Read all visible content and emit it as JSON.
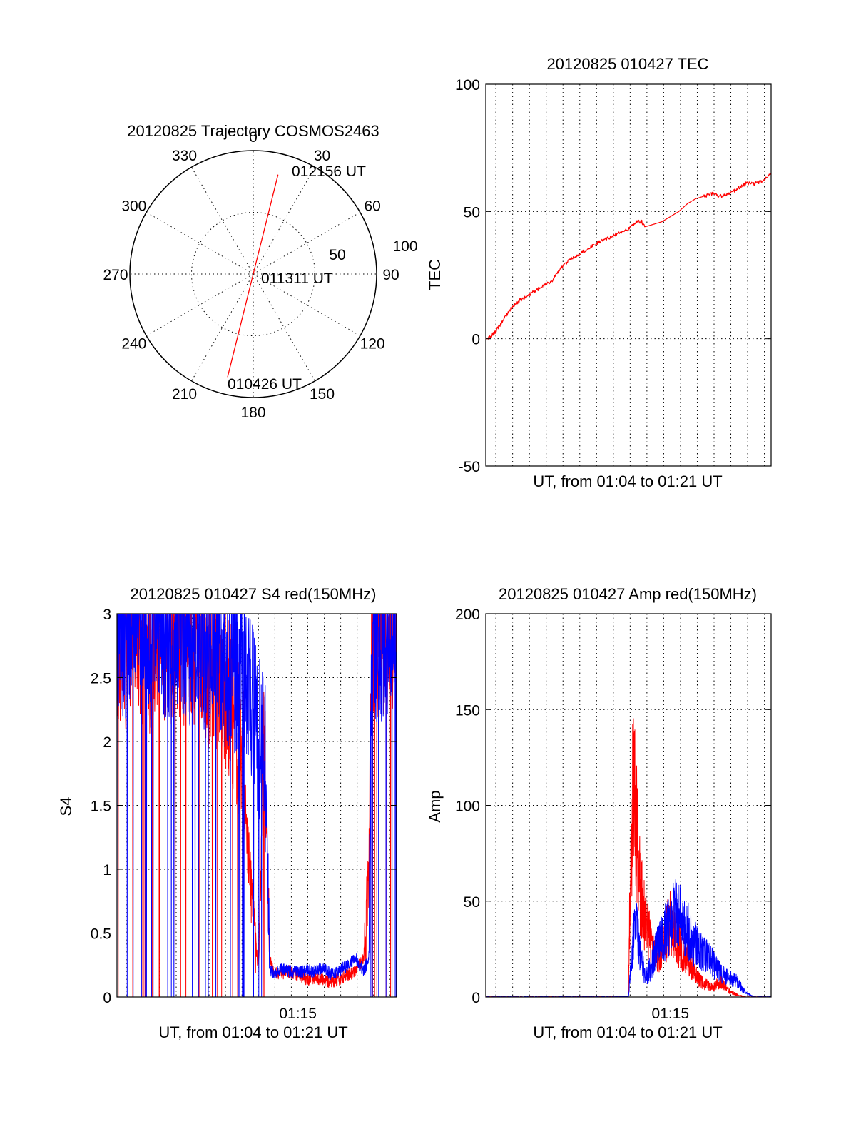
{
  "chart_data": [
    {
      "id": "polar",
      "type": "polar-trajectory",
      "title": "20120825 Trajectory COSMOS2463",
      "azimuth_labels": [
        "0",
        "30",
        "60",
        "90",
        "120",
        "150",
        "180",
        "210",
        "240",
        "270",
        "300",
        "330"
      ],
      "radial_labels": [
        "50",
        "100"
      ],
      "radial_values": [
        50,
        100
      ],
      "r_max": 100,
      "grid": true,
      "trajectory": {
        "color": "#ff0000",
        "points": [
          {
            "az": 194,
            "r": 86
          },
          {
            "az": 0,
            "r": 0
          },
          {
            "az": 14,
            "r": 83
          }
        ]
      },
      "annotations": [
        "012156 UT",
        "011311 UT",
        "010426 UT"
      ]
    },
    {
      "id": "tec",
      "type": "line",
      "title": "20120825 010427 TEC",
      "xlabel": "UT, from 01:04 to 01:21 UT",
      "ylabel": "TEC",
      "xlim": [
        0,
        17
      ],
      "ylim": [
        -50,
        100
      ],
      "yticks": [
        "-50",
        "0",
        "50",
        "100"
      ],
      "xgrid_step_min": 1,
      "grid": true,
      "series": [
        {
          "color": "#ff0000",
          "x": [
            0,
            0.3,
            0.6,
            1.0,
            1.5,
            2.0,
            2.5,
            3.0,
            3.5,
            4.0,
            4.5,
            5.0,
            5.5,
            6.0,
            6.5,
            7.0,
            7.5,
            8.0,
            8.5,
            9.0,
            9.3,
            9.5,
            10.0,
            10.5,
            11.0,
            11.5,
            12.0,
            12.5,
            13.0,
            13.5,
            14.0,
            14.5,
            15.0,
            15.5,
            16.0,
            16.5,
            17.0
          ],
          "y": [
            0,
            1,
            3,
            7,
            12,
            15,
            17,
            19,
            21,
            23,
            28,
            31,
            33,
            35,
            37,
            39,
            40,
            42,
            43,
            46,
            46,
            44,
            45,
            46,
            48,
            50,
            53,
            55,
            56,
            57,
            56,
            57,
            59,
            61,
            61,
            62,
            65
          ]
        }
      ]
    },
    {
      "id": "s4",
      "type": "line",
      "title": "20120825 010427 S4 red(150MHz)",
      "xlabel": "UT, from 01:04 to 01:21 UT",
      "ylabel": "S4",
      "xlim": [
        0,
        17
      ],
      "ylim": [
        0,
        3
      ],
      "yticks": [
        "0",
        "0.5",
        "1",
        "1.5",
        "2",
        "2.5",
        "3"
      ],
      "xticks": [
        {
          "x": 11,
          "label": "01:15"
        }
      ],
      "grid": true,
      "series": [
        {
          "color": "#ff0000",
          "x": [
            0,
            0.5,
            1.0,
            1.5,
            2.0,
            2.5,
            3.0,
            3.5,
            4.0,
            4.5,
            5.0,
            5.5,
            6.0,
            6.5,
            7.0,
            7.5,
            7.8,
            8.0,
            8.3,
            8.6,
            8.9,
            9.1,
            9.3,
            9.5,
            10.0,
            10.5,
            11.0,
            11.5,
            12.0,
            12.5,
            13.0,
            13.5,
            14.0,
            14.5,
            15.0,
            15.3,
            15.5,
            16.0,
            16.5,
            17.0
          ],
          "y": [
            2.6,
            2.4,
            2.8,
            2.5,
            2.3,
            2.7,
            2.4,
            2.6,
            2.3,
            2.5,
            2.5,
            2.3,
            2.3,
            2.2,
            2.0,
            1.7,
            1.4,
            1.1,
            0.6,
            0.2,
            1.9,
            1.2,
            0.3,
            0.2,
            0.18,
            0.2,
            0.17,
            0.14,
            0.15,
            0.13,
            0.12,
            0.14,
            0.17,
            0.2,
            0.3,
            0.9,
            2.6,
            2.5,
            2.7,
            2.6
          ]
        },
        {
          "color": "#0000ff",
          "x": [
            0,
            0.5,
            1.0,
            1.5,
            2.0,
            2.5,
            3.0,
            3.5,
            4.0,
            4.5,
            5.0,
            5.5,
            6.0,
            6.5,
            7.0,
            7.5,
            8.0,
            8.3,
            8.6,
            8.9,
            9.1,
            9.3,
            9.6,
            10.0,
            10.5,
            11.0,
            11.5,
            12.0,
            12.5,
            13.0,
            13.5,
            14.0,
            14.5,
            15.0,
            15.3,
            15.5,
            16.0,
            16.5,
            17.0
          ],
          "y": [
            2.7,
            2.5,
            2.9,
            2.6,
            2.4,
            2.8,
            2.5,
            2.7,
            2.6,
            2.5,
            2.6,
            2.4,
            2.7,
            2.3,
            2.3,
            2.3,
            2.2,
            2.0,
            1.8,
            1.7,
            1.4,
            0.2,
            0.18,
            0.22,
            0.2,
            0.19,
            0.21,
            0.2,
            0.22,
            0.18,
            0.2,
            0.25,
            0.3,
            0.2,
            0.3,
            2.6,
            2.5,
            2.6,
            2.7
          ]
        }
      ]
    },
    {
      "id": "amp",
      "type": "line",
      "title": "20120825 010427 Amp red(150MHz)",
      "xlabel": "UT, from 01:04 to 01:21 UT",
      "ylabel": "Amp",
      "xlim": [
        0,
        17
      ],
      "ylim": [
        0,
        200
      ],
      "yticks": [
        "0",
        "50",
        "100",
        "150",
        "200"
      ],
      "xticks": [
        {
          "x": 11,
          "label": "01:15"
        }
      ],
      "grid": true,
      "series": [
        {
          "color": "#ff0000",
          "x": [
            0,
            4,
            8.5,
            8.6,
            8.8,
            9.0,
            9.2,
            9.5,
            9.8,
            10.0,
            10.3,
            10.6,
            11.0,
            11.3,
            11.6,
            12.0,
            12.3,
            12.6,
            13.0,
            13.5,
            14.0,
            14.5,
            15.0,
            15.5,
            16.0,
            17.0
          ],
          "y": [
            0,
            0,
            0,
            60,
            118,
            85,
            55,
            42,
            30,
            25,
            22,
            28,
            40,
            32,
            25,
            20,
            15,
            10,
            7,
            5,
            8,
            3,
            1,
            0,
            0,
            0
          ]
        },
        {
          "color": "#0000ff",
          "x": [
            0,
            4,
            8.5,
            8.6,
            8.8,
            9.0,
            9.2,
            9.5,
            9.8,
            10.0,
            10.3,
            10.6,
            11.0,
            11.3,
            11.6,
            12.0,
            12.3,
            12.6,
            13.0,
            13.5,
            14.0,
            14.5,
            15.0,
            15.5,
            16.0,
            17.0
          ],
          "y": [
            0,
            0,
            0,
            12,
            30,
            35,
            22,
            10,
            15,
            20,
            28,
            32,
            38,
            45,
            40,
            35,
            30,
            26,
            22,
            18,
            12,
            10,
            8,
            2,
            0,
            0
          ]
        }
      ]
    }
  ]
}
